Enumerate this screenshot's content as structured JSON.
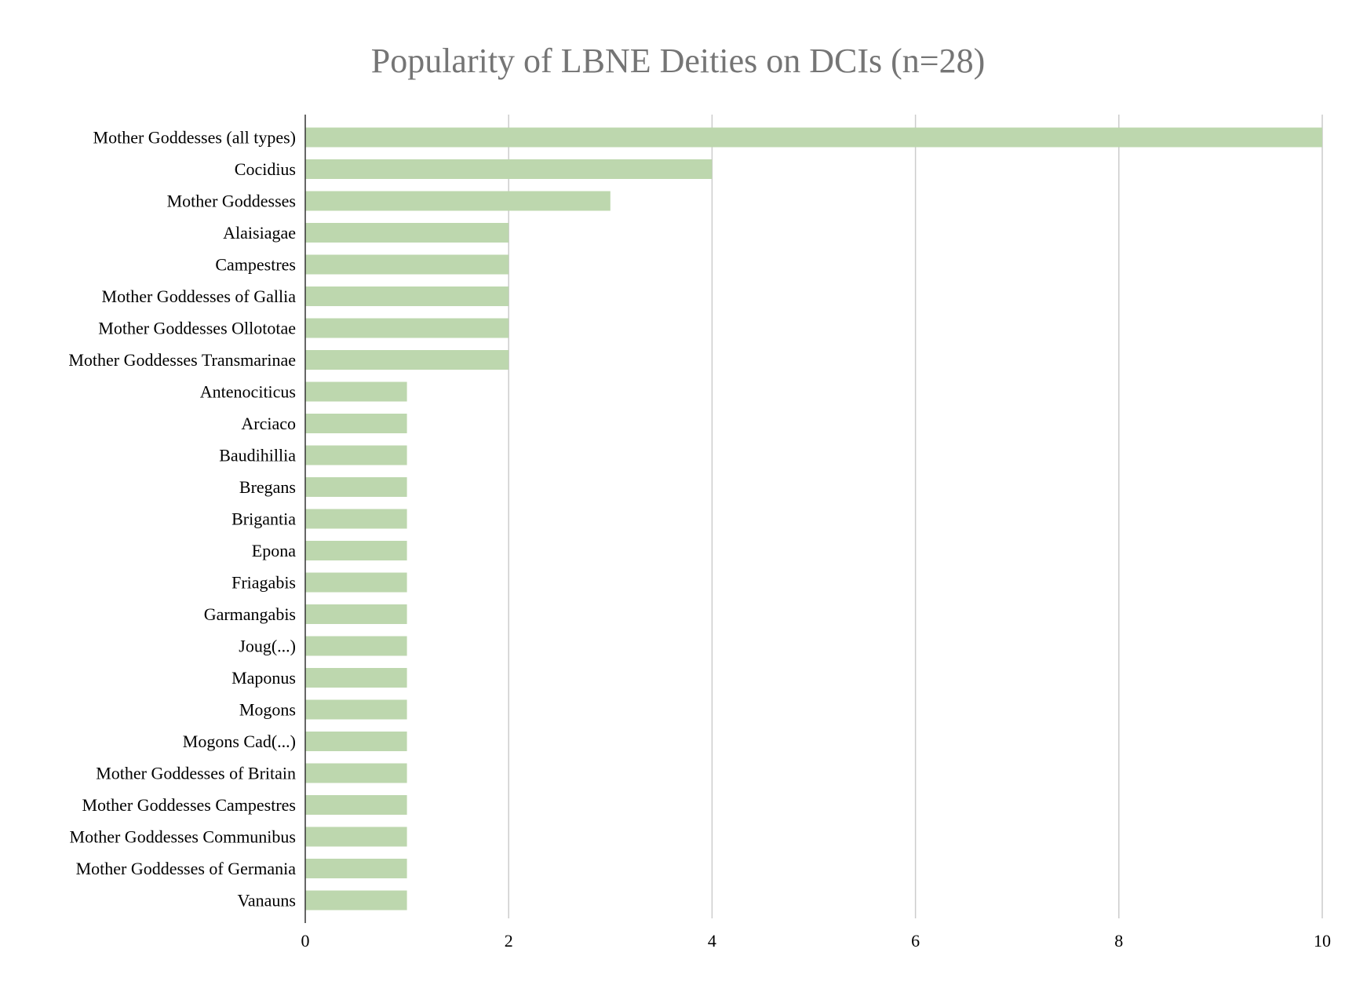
{
  "chart_data": {
    "type": "bar",
    "orientation": "horizontal",
    "title": "Popularity of LBNE Deities on DCIs (n=28)",
    "xlabel": "",
    "ylabel": "",
    "xlim": [
      0,
      10
    ],
    "xticks": [
      0,
      2,
      4,
      6,
      8,
      10
    ],
    "grid": true,
    "legend": "none",
    "bar_color": "#bdd7ae",
    "categories": [
      "Mother Goddesses (all types)",
      "Cocidius",
      "Mother Goddesses",
      "Alaisiagae",
      "Campestres",
      "Mother Goddesses of Gallia",
      "Mother Goddesses Ollototae",
      "Mother Goddesses Transmarinae",
      "Antenociticus",
      "Arciaco",
      "Baudihillia",
      "Bregans",
      "Brigantia",
      "Epona",
      "Friagabis",
      "Garmangabis",
      "Joug(...)",
      "Maponus",
      "Mogons",
      "Mogons Cad(...)",
      "Mother Goddesses of Britain",
      "Mother Goddesses Campestres",
      "Mother Goddesses Communibus",
      "Mother Goddesses of Germania",
      "Vanauns"
    ],
    "values": [
      10,
      4,
      3,
      2,
      2,
      2,
      2,
      2,
      1,
      1,
      1,
      1,
      1,
      1,
      1,
      1,
      1,
      1,
      1,
      1,
      1,
      1,
      1,
      1,
      1
    ]
  }
}
